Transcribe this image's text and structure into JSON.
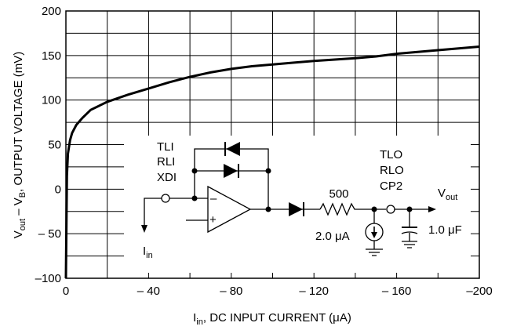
{
  "chart_data": {
    "type": "line",
    "xlabel_main": "I",
    "xlabel_sub": "in",
    "xlabel_rest": ", DC INPUT CURRENT (μA)",
    "ylabel_parts": [
      "V",
      "out",
      " – V",
      "B",
      ", OUTPUT VOLTAGE (mV)"
    ],
    "x_ticks": [
      "0",
      "– 40",
      "– 80",
      "– 120",
      "– 160",
      "–200"
    ],
    "x_tick_values": [
      0,
      -40,
      -80,
      -120,
      -160,
      -200
    ],
    "y_ticks": [
      "200",
      "150",
      "100",
      "50",
      "0",
      "– 50",
      "–100"
    ],
    "y_tick_values": [
      200,
      150,
      100,
      50,
      0,
      -50,
      -100
    ],
    "xlim": [
      0,
      -200
    ],
    "ylim": [
      -100,
      200
    ],
    "grid": true,
    "series": [
      {
        "x": [
          0,
          -0.5,
          -1,
          -2,
          -3,
          -5,
          -8,
          -12,
          -20,
          -30,
          -40,
          -50,
          -60,
          -70,
          -80,
          -90,
          -100,
          -120,
          -140,
          -150,
          -160,
          -180,
          -200
        ],
        "y": [
          -100,
          15,
          40,
          55,
          63,
          72,
          80,
          89,
          98,
          106,
          113,
          120,
          126,
          131,
          135,
          138,
          140,
          144,
          147,
          149,
          152,
          156,
          160
        ]
      }
    ]
  },
  "circuit": {
    "input_pins": [
      "TLI",
      "RLI",
      "XDI"
    ],
    "output_pins": [
      "TLO",
      "RLO",
      "CP2"
    ],
    "input_current_main": "I",
    "input_current_sub": "in",
    "resistor_value": "500",
    "current_source_value": "2.0 μA",
    "capacitor_value": "1.0 μF",
    "output_main": "V",
    "output_sub": "out",
    "opamp_minus": "–",
    "opamp_plus": "+"
  }
}
